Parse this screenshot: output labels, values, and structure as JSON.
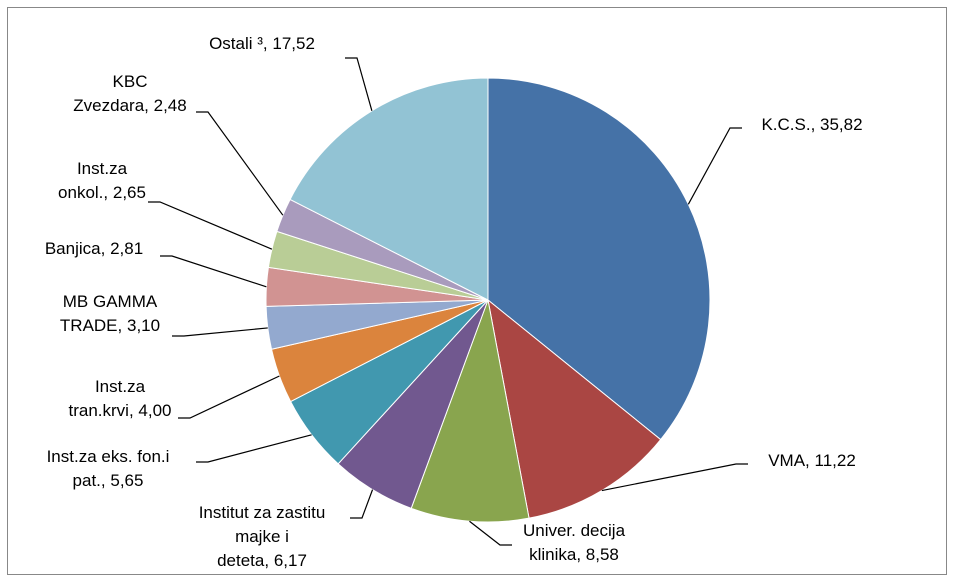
{
  "chart_data": {
    "type": "pie",
    "categories": [
      "K.C.S.",
      "VMA",
      "Univer. decija klinika",
      "Institut za zastitu majke i deteta",
      "Inst.za eks. fon.i pat.",
      "Inst.za tran.krvi",
      "MB GAMMA TRADE",
      "Banjica",
      "Inst.za onkol.",
      "KBC Zvezdara",
      "Ostali ³"
    ],
    "values": [
      35.82,
      11.22,
      8.58,
      6.17,
      5.65,
      4.0,
      3.1,
      2.81,
      2.65,
      2.48,
      17.52
    ],
    "value_labels": [
      "35,82",
      "11,22",
      "8,58",
      "6,17",
      "5,65",
      "4,00",
      "3,10",
      "2,81",
      "2,65",
      "2,48",
      "17,52"
    ],
    "label_separator": ", ",
    "colors": [
      "#4572A7",
      "#AA4643",
      "#89A54E",
      "#71588F",
      "#4198AF",
      "#DB843D",
      "#93A9CF",
      "#D19392",
      "#B9CD96",
      "#A99BBD",
      "#92C3D4"
    ]
  }
}
